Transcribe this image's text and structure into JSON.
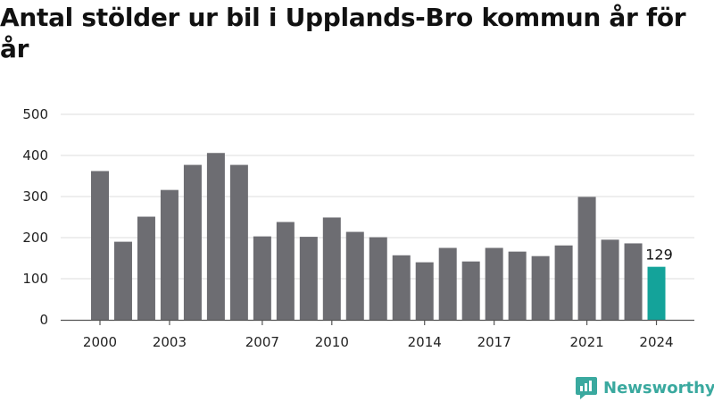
{
  "title": "Antal stölder ur bil i Upplands-Bro kommun år för år",
  "brand": {
    "name": "Newsworthy",
    "icon": "newsworthy-logo-icon"
  },
  "colors": {
    "bar": "#6d6d72",
    "highlight": "#14a39a",
    "grid": "#dcdcdc",
    "axis": "#555555",
    "brand": "#3aa99f"
  },
  "chart_data": {
    "type": "bar",
    "title": "Antal stölder ur bil i Upplands-Bro kommun år för år",
    "xlabel": "",
    "ylabel": "",
    "categories": [
      "2000",
      "2001",
      "2002",
      "2003",
      "2004",
      "2005",
      "2006",
      "2007",
      "2008",
      "2009",
      "2010",
      "2011",
      "2012",
      "2013",
      "2014",
      "2015",
      "2016",
      "2017",
      "2018",
      "2019",
      "2020",
      "2021",
      "2022",
      "2023",
      "2024"
    ],
    "values": [
      362,
      190,
      251,
      316,
      377,
      406,
      377,
      203,
      238,
      202,
      249,
      214,
      201,
      157,
      140,
      175,
      142,
      175,
      166,
      155,
      181,
      299,
      195,
      186,
      129
    ],
    "highlight_index": 24,
    "highlight_label": "129",
    "x_tick_labels": [
      "2000",
      "2003",
      "2007",
      "2010",
      "2014",
      "2017",
      "2021",
      "2024"
    ],
    "y_ticks": [
      0,
      100,
      200,
      300,
      400,
      500
    ],
    "ylim": [
      0,
      500
    ],
    "grid": true,
    "legend": "none"
  }
}
